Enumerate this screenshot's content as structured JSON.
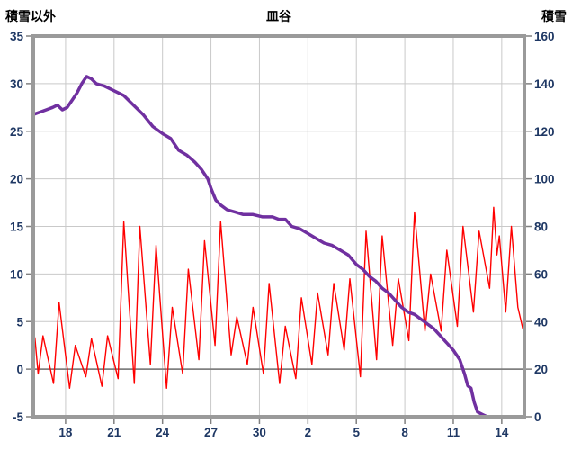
{
  "header": {
    "left_axis_title": "積雪以外",
    "title": "皿谷",
    "right_axis_title": "積雪"
  },
  "chart_data": {
    "type": "line",
    "title": "皿谷",
    "grid": {
      "gridline_color": "#c9c9c9",
      "zero_line_color": "#808080",
      "frame_color": "#9a9a9a",
      "tick_color": "#808080",
      "label_color": "#1F3864",
      "background": "#ffffff"
    },
    "left_axis": {
      "title": "積雪以外",
      "min": -5,
      "max": 35,
      "step": 5,
      "tick_labels": [
        "35",
        "30",
        "25",
        "20",
        "15",
        "10",
        "5",
        "0",
        "-5"
      ]
    },
    "right_axis": {
      "title": "積雪",
      "min": 0,
      "max": 160,
      "step": 20,
      "tick_labels": [
        "160",
        "140",
        "120",
        "100",
        "80",
        "60",
        "40",
        "20",
        "0"
      ]
    },
    "x_axis": {
      "domain": [
        16.0,
        46.4
      ],
      "ticks": [
        {
          "day": 18,
          "label": "18"
        },
        {
          "day": 21,
          "label": "21"
        },
        {
          "day": 24,
          "label": "24"
        },
        {
          "day": 27,
          "label": "27"
        },
        {
          "day": 30,
          "label": "30"
        },
        {
          "day": 33,
          "label": "2"
        },
        {
          "day": 36,
          "label": "5"
        },
        {
          "day": 39,
          "label": "8"
        },
        {
          "day": 42,
          "label": "11"
        },
        {
          "day": 45,
          "label": "14"
        }
      ]
    },
    "series": [
      {
        "name": "積雪以外",
        "axis": "left",
        "color": "#ff0000",
        "width": 1.4,
        "points": [
          [
            16.0,
            2.6
          ],
          [
            16.1,
            3.3
          ],
          [
            16.3,
            -0.5
          ],
          [
            16.6,
            3.5
          ],
          [
            17.25,
            -1.5
          ],
          [
            17.6,
            7.0
          ],
          [
            18.25,
            -2.0
          ],
          [
            18.6,
            2.5
          ],
          [
            19.25,
            -0.8
          ],
          [
            19.6,
            3.2
          ],
          [
            20.25,
            -1.8
          ],
          [
            20.6,
            3.5
          ],
          [
            21.25,
            -1.0
          ],
          [
            21.6,
            15.5
          ],
          [
            22.25,
            -1.5
          ],
          [
            22.6,
            15.0
          ],
          [
            23.25,
            0.5
          ],
          [
            23.6,
            13.0
          ],
          [
            24.25,
            -2.0
          ],
          [
            24.6,
            6.5
          ],
          [
            25.25,
            -0.5
          ],
          [
            25.6,
            10.5
          ],
          [
            26.25,
            1.0
          ],
          [
            26.6,
            13.5
          ],
          [
            27.25,
            2.5
          ],
          [
            27.6,
            15.5
          ],
          [
            28.25,
            1.5
          ],
          [
            28.6,
            5.5
          ],
          [
            29.25,
            0.5
          ],
          [
            29.6,
            6.5
          ],
          [
            30.25,
            -0.5
          ],
          [
            30.6,
            9.0
          ],
          [
            31.25,
            -1.5
          ],
          [
            31.6,
            4.5
          ],
          [
            32.25,
            -1.0
          ],
          [
            32.6,
            7.5
          ],
          [
            33.25,
            0.5
          ],
          [
            33.6,
            8.0
          ],
          [
            34.25,
            1.5
          ],
          [
            34.6,
            9.0
          ],
          [
            35.25,
            2.0
          ],
          [
            35.6,
            9.5
          ],
          [
            36.25,
            -0.8
          ],
          [
            36.6,
            14.5
          ],
          [
            37.25,
            1.0
          ],
          [
            37.6,
            14.0
          ],
          [
            38.25,
            2.5
          ],
          [
            38.6,
            9.5
          ],
          [
            39.25,
            3.0
          ],
          [
            39.6,
            16.5
          ],
          [
            40.25,
            4.0
          ],
          [
            40.6,
            10.0
          ],
          [
            41.25,
            4.0
          ],
          [
            41.6,
            12.5
          ],
          [
            42.25,
            4.5
          ],
          [
            42.6,
            15.0
          ],
          [
            43.25,
            6.0
          ],
          [
            43.6,
            14.5
          ],
          [
            44.25,
            8.5
          ],
          [
            44.5,
            17.0
          ],
          [
            44.7,
            12.0
          ],
          [
            44.85,
            14.0
          ],
          [
            45.25,
            6.0
          ],
          [
            45.6,
            15.0
          ],
          [
            46.0,
            6.5
          ],
          [
            46.3,
            4.3
          ]
        ]
      },
      {
        "name": "積雪",
        "axis": "right",
        "color": "#7030A0",
        "width": 3.5,
        "points": [
          [
            16.0,
            127
          ],
          [
            16.4,
            128
          ],
          [
            16.8,
            129
          ],
          [
            17.2,
            130
          ],
          [
            17.5,
            131
          ],
          [
            17.8,
            129
          ],
          [
            18.1,
            130
          ],
          [
            18.4,
            133
          ],
          [
            18.7,
            136
          ],
          [
            19.0,
            140
          ],
          [
            19.3,
            143
          ],
          [
            19.6,
            142
          ],
          [
            19.9,
            140
          ],
          [
            20.4,
            139
          ],
          [
            21.0,
            137
          ],
          [
            21.6,
            135
          ],
          [
            22.2,
            131
          ],
          [
            22.8,
            127
          ],
          [
            23.4,
            122
          ],
          [
            24.0,
            119
          ],
          [
            24.5,
            117
          ],
          [
            25.0,
            112
          ],
          [
            25.5,
            110
          ],
          [
            26.0,
            107
          ],
          [
            26.4,
            104
          ],
          [
            26.8,
            100
          ],
          [
            27.0,
            96
          ],
          [
            27.3,
            91
          ],
          [
            27.6,
            89
          ],
          [
            28.0,
            87
          ],
          [
            28.5,
            86
          ],
          [
            29.0,
            85
          ],
          [
            29.6,
            85
          ],
          [
            30.2,
            84
          ],
          [
            30.8,
            84
          ],
          [
            31.2,
            83
          ],
          [
            31.6,
            83
          ],
          [
            32.0,
            80
          ],
          [
            32.5,
            79
          ],
          [
            33.0,
            77
          ],
          [
            33.5,
            75
          ],
          [
            34.0,
            73
          ],
          [
            34.5,
            72
          ],
          [
            35.0,
            70
          ],
          [
            35.5,
            68
          ],
          [
            36.0,
            64
          ],
          [
            36.4,
            62
          ],
          [
            36.8,
            59
          ],
          [
            37.2,
            57
          ],
          [
            37.6,
            54
          ],
          [
            38.0,
            52
          ],
          [
            38.4,
            49
          ],
          [
            38.8,
            46
          ],
          [
            39.2,
            44
          ],
          [
            39.6,
            43
          ],
          [
            40.0,
            41
          ],
          [
            40.4,
            39
          ],
          [
            40.8,
            37
          ],
          [
            41.2,
            34
          ],
          [
            41.6,
            31
          ],
          [
            42.0,
            28
          ],
          [
            42.4,
            24
          ],
          [
            42.7,
            18
          ],
          [
            42.9,
            13
          ],
          [
            43.1,
            12
          ],
          [
            43.3,
            6
          ],
          [
            43.5,
            2
          ],
          [
            43.8,
            1
          ],
          [
            44.1,
            0
          ],
          [
            45.3,
            0
          ]
        ]
      }
    ]
  }
}
